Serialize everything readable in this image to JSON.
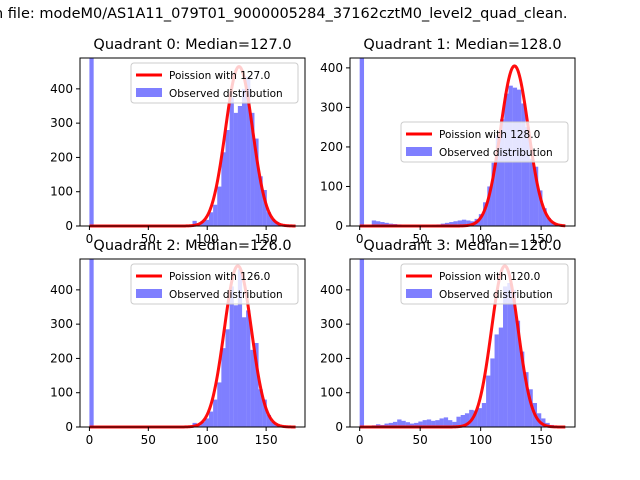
{
  "figure": {
    "title": "n file: modeM0/AS1A11_079T01_9000005284_37162cztM0_level2_quad_clean."
  },
  "colors": {
    "histogram": "#7f7fff",
    "poisson_line": "#ff0000",
    "axes": "#000000"
  },
  "chart_data": [
    {
      "type": "bar",
      "title": "Quadrant 0: Median=127.0",
      "xlim": [
        -8,
        183
      ],
      "ylim": [
        0,
        490
      ],
      "xticks": [
        0,
        50,
        100,
        150
      ],
      "yticks": [
        0,
        100,
        200,
        300,
        400
      ],
      "legend_position": "upper right",
      "bin_width": 3.6,
      "hist_name": "Observed distribution",
      "poisson_name": "Poission with 127.0",
      "poisson_mean": 127.0,
      "poisson_peak": 465,
      "poisson_sd": 11.5,
      "poisson_x": [
        0,
        175
      ],
      "hist_x": [
        0,
        87.5,
        91,
        94.5,
        98,
        101.5,
        105,
        108.5,
        112,
        115.5,
        119,
        122.5,
        126,
        129.5,
        133,
        136.5,
        140,
        143.5,
        147,
        150.5,
        154,
        157.5,
        161,
        164.5,
        168,
        171.5
      ],
      "hist_y": [
        490,
        15,
        6,
        12,
        18,
        40,
        62,
        115,
        215,
        280,
        375,
        330,
        350,
        400,
        435,
        330,
        255,
        145,
        105,
        40,
        20,
        12,
        5,
        4,
        3,
        2
      ]
    },
    {
      "type": "bar",
      "title": "Quadrant 1: Median=128.0",
      "xlim": [
        -8,
        178
      ],
      "ylim": [
        0,
        425
      ],
      "xticks": [
        0,
        50,
        100,
        150
      ],
      "yticks": [
        0,
        100,
        200,
        300,
        400
      ],
      "legend_position": "center right",
      "bin_width": 3.6,
      "hist_name": "Observed distribution",
      "poisson_name": "Poission with 128.0",
      "poisson_mean": 128.0,
      "poisson_peak": 405,
      "poisson_sd": 11.5,
      "poisson_x": [
        0,
        170
      ],
      "hist_x": [
        0,
        10,
        13.5,
        17,
        20.5,
        24,
        27.5,
        31,
        60,
        63.5,
        67,
        70.5,
        74,
        77.5,
        81,
        84.5,
        88,
        91.5,
        95,
        98.5,
        102,
        105.5,
        109,
        112.5,
        116,
        119.5,
        123,
        126.5,
        130,
        133.5,
        137,
        140.5,
        144,
        147.5,
        151,
        154.5,
        158,
        161.5,
        165
      ],
      "hist_y": [
        425,
        14,
        12,
        10,
        8,
        6,
        5,
        4,
        3,
        4,
        6,
        8,
        10,
        12,
        14,
        16,
        14,
        12,
        18,
        30,
        60,
        100,
        160,
        230,
        270,
        335,
        355,
        350,
        345,
        310,
        250,
        170,
        150,
        90,
        45,
        20,
        10,
        5,
        3
      ]
    },
    {
      "type": "bar",
      "title": "Quadrant 2: Median=126.0",
      "xlim": [
        -8,
        183
      ],
      "ylim": [
        0,
        490
      ],
      "xticks": [
        0,
        50,
        100,
        150
      ],
      "yticks": [
        0,
        100,
        200,
        300,
        400
      ],
      "legend_position": "upper right",
      "bin_width": 3.6,
      "hist_name": "Observed distribution",
      "poisson_name": "Poission with 126.0",
      "poisson_mean": 126.0,
      "poisson_peak": 470,
      "poisson_sd": 11.5,
      "poisson_x": [
        0,
        175
      ],
      "hist_x": [
        0,
        87.5,
        91,
        94.5,
        98,
        101.5,
        105,
        108.5,
        112,
        115.5,
        119,
        122.5,
        126,
        129.5,
        133,
        136.5,
        140,
        143.5,
        147,
        150.5,
        154,
        157.5,
        161,
        164.5,
        168,
        171.5
      ],
      "hist_y": [
        490,
        12,
        8,
        15,
        25,
        45,
        80,
        130,
        230,
        285,
        410,
        355,
        460,
        320,
        340,
        225,
        245,
        110,
        80,
        35,
        15,
        8,
        5,
        3,
        2,
        1
      ]
    },
    {
      "type": "bar",
      "title": "Quadrant 3: Median=120.0",
      "xlim": [
        -8,
        178
      ],
      "ylim": [
        0,
        490
      ],
      "xticks": [
        0,
        50,
        100,
        150
      ],
      "yticks": [
        0,
        100,
        200,
        300,
        400
      ],
      "legend_position": "upper right",
      "bin_width": 3.6,
      "hist_name": "Observed distribution",
      "poisson_name": "Poission with 120.0",
      "poisson_mean": 120.0,
      "poisson_peak": 470,
      "poisson_sd": 11.0,
      "poisson_x": [
        0,
        170
      ],
      "hist_x": [
        0,
        10,
        13.5,
        17,
        20.5,
        24,
        27.5,
        31,
        34.5,
        38,
        41.5,
        45,
        48.5,
        52,
        55.5,
        59,
        62.5,
        66,
        69.5,
        73,
        76.5,
        80,
        83.5,
        87,
        90.5,
        94,
        97.5,
        101,
        104.5,
        108,
        111.5,
        115,
        118.5,
        122,
        125.5,
        129,
        132.5,
        136,
        139.5,
        143,
        146.5,
        150,
        153.5,
        157,
        160.5,
        164
      ],
      "hist_y": [
        490,
        5,
        8,
        6,
        10,
        12,
        15,
        22,
        18,
        14,
        10,
        12,
        16,
        20,
        22,
        18,
        20,
        25,
        28,
        20,
        15,
        30,
        35,
        40,
        50,
        48,
        55,
        70,
        150,
        200,
        270,
        290,
        410,
        420,
        400,
        310,
        220,
        160,
        110,
        70,
        40,
        25,
        12,
        6,
        3,
        2
      ]
    }
  ]
}
